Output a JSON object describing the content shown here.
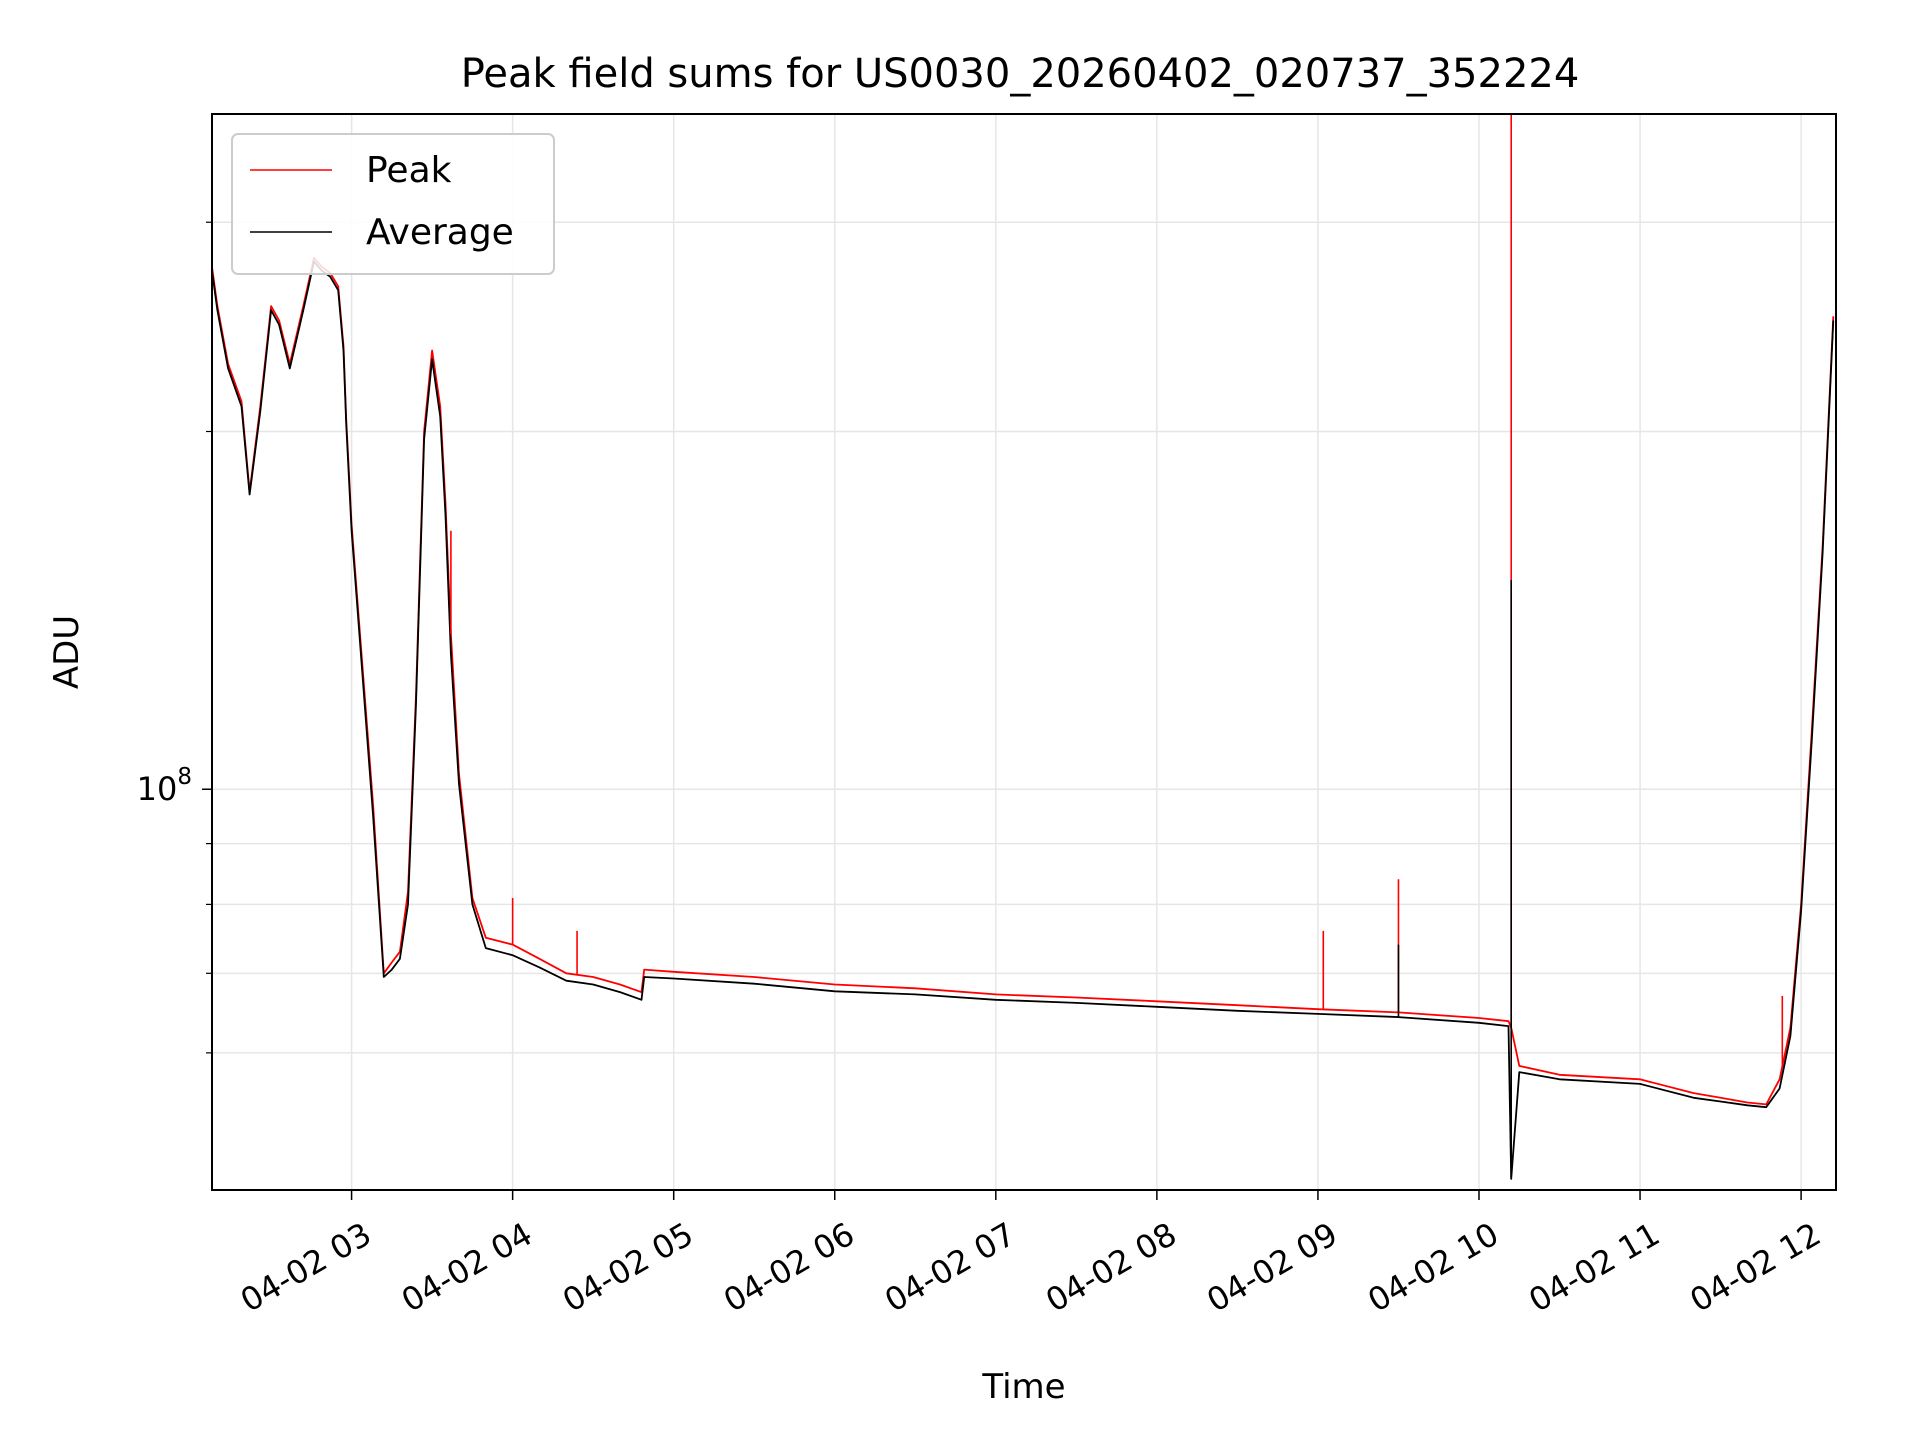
{
  "chart_data": {
    "type": "line",
    "title": "Peak field sums for US0030_20260402_020737_352224",
    "xlabel": "Time",
    "ylabel": "ADU",
    "y_scale": "log",
    "xlim": [
      "2026-04-02 02:08",
      "2026-04-02 12:13"
    ],
    "ylim": [
      46000000,
      370000000
    ],
    "grid": true,
    "legend_position": "top-left",
    "x_ticks": [
      {
        "time": "2026-04-02 03:00",
        "label": "04-02 03"
      },
      {
        "time": "2026-04-02 04:00",
        "label": "04-02 04"
      },
      {
        "time": "2026-04-02 05:00",
        "label": "04-02 05"
      },
      {
        "time": "2026-04-02 06:00",
        "label": "04-02 06"
      },
      {
        "time": "2026-04-02 07:00",
        "label": "04-02 07"
      },
      {
        "time": "2026-04-02 08:00",
        "label": "04-02 08"
      },
      {
        "time": "2026-04-02 09:00",
        "label": "04-02 09"
      },
      {
        "time": "2026-04-02 10:00",
        "label": "04-02 10"
      },
      {
        "time": "2026-04-02 11:00",
        "label": "04-02 11"
      },
      {
        "time": "2026-04-02 12:00",
        "label": "04-02 12"
      }
    ],
    "y_major_ticks": [
      {
        "value": 100000000,
        "base": "10",
        "exponent": "8"
      }
    ],
    "y_minor_ticks": [
      60000000,
      70000000,
      80000000,
      90000000,
      200000000,
      300000000
    ],
    "series": [
      {
        "name": "Peak",
        "color": "#ff0000",
        "x": [
          "2026-04-02 02:08",
          "2026-04-02 02:10",
          "2026-04-02 02:14",
          "2026-04-02 02:19",
          "2026-04-02 02:22",
          "2026-04-02 02:26",
          "2026-04-02 02:30",
          "2026-04-02 02:33",
          "2026-04-02 02:37",
          "2026-04-02 02:42",
          "2026-04-02 02:46",
          "2026-04-02 02:49",
          "2026-04-02 02:52",
          "2026-04-02 02:55",
          "2026-04-02 02:57",
          "2026-04-02 02:58",
          "2026-04-02 03:00",
          "2026-04-02 03:08",
          "2026-04-02 03:12",
          "2026-04-02 03:15",
          "2026-04-02 03:18",
          "2026-04-02 03:21",
          "2026-04-02 03:24",
          "2026-04-02 03:27",
          "2026-04-02 03:30",
          "2026-04-02 03:33",
          "2026-04-02 03:35",
          "2026-04-02 03:37",
          "2026-04-02 03:40",
          "2026-04-02 03:45",
          "2026-04-02 03:50",
          "2026-04-02 04:00",
          "2026-04-02 04:10",
          "2026-04-02 04:20",
          "2026-04-02 04:30",
          "2026-04-02 04:40",
          "2026-04-02 04:48",
          "2026-04-02 04:49",
          "2026-04-02 05:00",
          "2026-04-02 05:30",
          "2026-04-02 06:00",
          "2026-04-02 06:30",
          "2026-04-02 07:00",
          "2026-04-02 07:30",
          "2026-04-02 08:00",
          "2026-04-02 08:30",
          "2026-04-02 09:00",
          "2026-04-02 09:30",
          "2026-04-02 10:00",
          "2026-04-02 10:11",
          "2026-04-02 10:12",
          "2026-04-02 10:15",
          "2026-04-02 10:30",
          "2026-04-02 11:00",
          "2026-04-02 11:20",
          "2026-04-02 11:30",
          "2026-04-02 11:40",
          "2026-04-02 11:47",
          "2026-04-02 11:52",
          "2026-04-02 11:56",
          "2026-04-02 12:00",
          "2026-04-02 12:04",
          "2026-04-02 12:08",
          "2026-04-02 12:12"
        ],
        "y": [
          275000000,
          255000000,
          228000000,
          212000000,
          178000000,
          210000000,
          255000000,
          248000000,
          228000000,
          255000000,
          280000000,
          275000000,
          272000000,
          265000000,
          236000000,
          205000000,
          167000000,
          97000000,
          70000000,
          71500000,
          73000000,
          82000000,
          120000000,
          200000000,
          234000000,
          210000000,
          174000000,
          135000000,
          103000000,
          81000000,
          75000000,
          74000000,
          72000000,
          70000000,
          69500000,
          68500000,
          67500000,
          70500000,
          70200000,
          69500000,
          68500000,
          68000000,
          67200000,
          66800000,
          66300000,
          65800000,
          65300000,
          64900000,
          64200000,
          63800000,
          63000000,
          58500000,
          57500000,
          57000000,
          55500000,
          55000000,
          54500000,
          54300000,
          57000000,
          63000000,
          80000000,
          112000000,
          160000000,
          250000000
        ]
      },
      {
        "name": "Average",
        "color": "#000000",
        "x": [
          "2026-04-02 02:08",
          "2026-04-02 02:10",
          "2026-04-02 02:14",
          "2026-04-02 02:19",
          "2026-04-02 02:22",
          "2026-04-02 02:26",
          "2026-04-02 02:30",
          "2026-04-02 02:33",
          "2026-04-02 02:37",
          "2026-04-02 02:42",
          "2026-04-02 02:46",
          "2026-04-02 02:49",
          "2026-04-02 02:52",
          "2026-04-02 02:55",
          "2026-04-02 02:57",
          "2026-04-02 02:58",
          "2026-04-02 03:00",
          "2026-04-02 03:08",
          "2026-04-02 03:12",
          "2026-04-02 03:15",
          "2026-04-02 03:18",
          "2026-04-02 03:21",
          "2026-04-02 03:24",
          "2026-04-02 03:27",
          "2026-04-02 03:30",
          "2026-04-02 03:33",
          "2026-04-02 03:35",
          "2026-04-02 03:37",
          "2026-04-02 03:40",
          "2026-04-02 03:45",
          "2026-04-02 03:50",
          "2026-04-02 04:00",
          "2026-04-02 04:10",
          "2026-04-02 04:20",
          "2026-04-02 04:30",
          "2026-04-02 04:40",
          "2026-04-02 04:48",
          "2026-04-02 04:49",
          "2026-04-02 05:00",
          "2026-04-02 05:30",
          "2026-04-02 06:00",
          "2026-04-02 06:30",
          "2026-04-02 07:00",
          "2026-04-02 07:30",
          "2026-04-02 08:00",
          "2026-04-02 08:30",
          "2026-04-02 09:00",
          "2026-04-02 09:30",
          "2026-04-02 10:00",
          "2026-04-02 10:11",
          "2026-04-02 10:12",
          "2026-04-02 10:15",
          "2026-04-02 10:30",
          "2026-04-02 11:00",
          "2026-04-02 11:20",
          "2026-04-02 11:30",
          "2026-04-02 11:40",
          "2026-04-02 11:47",
          "2026-04-02 11:52",
          "2026-04-02 11:56",
          "2026-04-02 12:00",
          "2026-04-02 12:04",
          "2026-04-02 12:08",
          "2026-04-02 12:12"
        ],
        "y": [
          273000000,
          253000000,
          226000000,
          210000000,
          177000000,
          208000000,
          253000000,
          246000000,
          226000000,
          253000000,
          278000000,
          273000000,
          270000000,
          263000000,
          234000000,
          203000000,
          165000000,
          95000000,
          69500000,
          70500000,
          72000000,
          80000000,
          118000000,
          197000000,
          230000000,
          206000000,
          170000000,
          130000000,
          101000000,
          80000000,
          73500000,
          72500000,
          70800000,
          69000000,
          68500000,
          67500000,
          66500000,
          69500000,
          69300000,
          68600000,
          67600000,
          67200000,
          66500000,
          66100000,
          65600000,
          65100000,
          64700000,
          64300000,
          63600000,
          63200000,
          47000000,
          57800000,
          57000000,
          56500000,
          55000000,
          54600000,
          54200000,
          54000000,
          56000000,
          62000000,
          79000000,
          110000000,
          158000000,
          248000000
        ]
      }
    ],
    "spikes": [
      {
        "series": "Peak",
        "time": "2026-04-02 10:12",
        "value": 370000000
      },
      {
        "series": "Average",
        "time": "2026-04-02 10:12",
        "value": 150000000
      },
      {
        "series": "Peak",
        "time": "2026-04-02 09:30",
        "value": 84000000
      },
      {
        "series": "Average",
        "time": "2026-04-02 09:30",
        "value": 74000000
      },
      {
        "series": "Peak",
        "time": "2026-04-02 09:02",
        "value": 76000000
      },
      {
        "series": "Peak",
        "time": "2026-04-02 04:00",
        "value": 81000000
      },
      {
        "series": "Peak",
        "time": "2026-04-02 04:24",
        "value": 76000000
      },
      {
        "series": "Peak",
        "time": "2026-04-02 03:33",
        "value": 210000000
      },
      {
        "series": "Peak",
        "time": "2026-04-02 03:37",
        "value": 165000000
      },
      {
        "series": "Peak",
        "time": "2026-04-02 11:53",
        "value": 67000000
      }
    ]
  }
}
